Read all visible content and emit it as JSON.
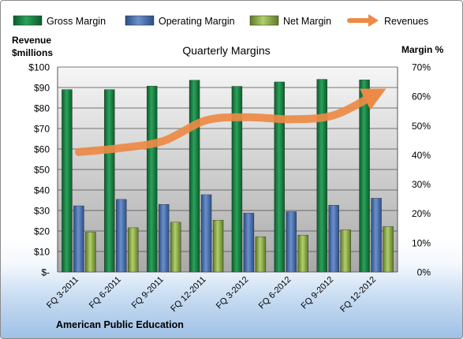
{
  "chart_data": {
    "type": "bar",
    "title": "Quarterly Margins",
    "company": "American Public Education",
    "left_axis_label": [
      "Revenue",
      "$millions"
    ],
    "right_axis_label": "Margin %",
    "categories": [
      "FQ 3-2011",
      "FQ 6-2011",
      "FQ 9-2011",
      "FQ 12-2011",
      "FQ 3-2012",
      "FQ 6-2012",
      "FQ 9-2012",
      "FQ 12-2012"
    ],
    "left_ticks": [
      "$-",
      "$10",
      "$20",
      "$30",
      "$40",
      "$50",
      "$60",
      "$70",
      "$80",
      "$90",
      "$100"
    ],
    "right_ticks": [
      "0%",
      "10%",
      "20%",
      "30%",
      "40%",
      "50%",
      "60%",
      "70%"
    ],
    "ylim_left": [
      0,
      100
    ],
    "ylim_right": [
      0,
      70
    ],
    "grid": true,
    "legend_position": "top",
    "series": [
      {
        "name": "Gross Margin",
        "axis": "right",
        "color": "#1f8b4c",
        "values": [
          62.3,
          62.3,
          63.5,
          65.5,
          63.4,
          64.9,
          65.8,
          65.6
        ]
      },
      {
        "name": "Operating Margin",
        "axis": "right",
        "color": "#4a70b0",
        "values": [
          22.6,
          24.8,
          23.1,
          26.4,
          20.1,
          20.6,
          22.8,
          25.2
        ]
      },
      {
        "name": "Net Margin",
        "axis": "right",
        "color": "#8fb04a",
        "values": [
          13.6,
          15.1,
          17.0,
          17.7,
          12.0,
          12.6,
          14.4,
          15.5
        ]
      },
      {
        "name": "Revenues",
        "axis": "left",
        "type": "line",
        "color": "#ed8a45",
        "values": [
          58.5,
          60.5,
          64.0,
          74.0,
          75.5,
          74.5,
          76.5,
          87.0
        ]
      }
    ]
  }
}
